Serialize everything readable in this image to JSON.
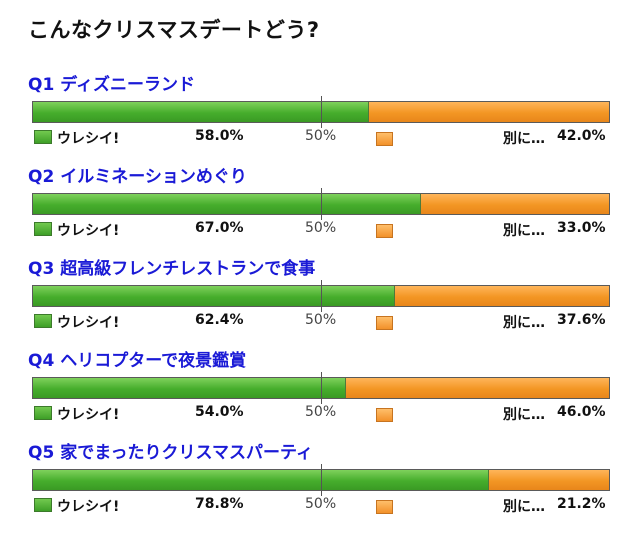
{
  "title": "こんなクリスマスデートどう?",
  "legend": {
    "a_label": "ウレシイ!",
    "b_label": "別に…",
    "mid_label": "50%"
  },
  "colors": {
    "a": "#46ad2c",
    "b": "#f39624",
    "question": "#1a1ad6"
  },
  "chart_data": {
    "type": "bar",
    "stacked": true,
    "orientation": "horizontal",
    "categories": [
      "Q1 ディズニーランド",
      "Q2 イルミネーションめぐり",
      "Q3 超高級フレンチレストランで食事",
      "Q4 ヘリコプターで夜景鑑賞",
      "Q5 家でまったりクリスマスパーティ"
    ],
    "series": [
      {
        "name": "ウレシイ!",
        "values": [
          58.0,
          67.0,
          62.4,
          54.0,
          78.8
        ],
        "labels": [
          "58.0%",
          "67.0%",
          "62.4%",
          "54.0%",
          "78.8%"
        ]
      },
      {
        "name": "別に…",
        "values": [
          42.0,
          33.0,
          37.6,
          46.0,
          21.2
        ],
        "labels": [
          "42.0%",
          "33.0%",
          "37.6%",
          "46.0%",
          "21.2%"
        ]
      }
    ],
    "title": "こんなクリスマスデートどう?",
    "xlim": [
      0,
      100
    ]
  }
}
